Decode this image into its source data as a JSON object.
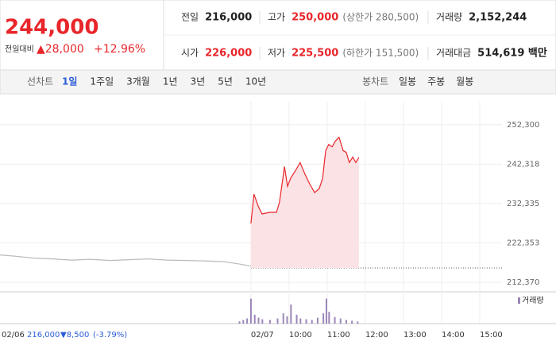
{
  "header": {
    "price": "244,000",
    "change_label": "전일대비",
    "change": "▲28,000",
    "change_pct": "+12.96%",
    "stats": [
      {
        "label": "전일",
        "value": "216,000"
      },
      {
        "label": "고가",
        "value": "250,000",
        "note": "(상한가 280,500)"
      },
      {
        "label": "거래량",
        "value": "2,152,244"
      },
      {
        "label": "시가",
        "value": "226,000"
      },
      {
        "label": "저가",
        "value": "225,500",
        "note": "(하한가 151,500)"
      },
      {
        "label": "거래대금",
        "value": "514,619 백만"
      }
    ]
  },
  "tabs": {
    "line_label": "선차트",
    "line_periods": [
      "1일",
      "1주일",
      "3개월",
      "1년",
      "3년",
      "5년",
      "10년"
    ],
    "candle_label": "봉차트",
    "candle_periods": [
      "일봉",
      "주봉",
      "월봉"
    ]
  },
  "status": {
    "date": "02/06",
    "close": "216,000",
    "change": "▼8,500",
    "pct": "(-3.79%)"
  },
  "chart_data": {
    "type": "line",
    "grid": true,
    "xlim": [
      -6.58,
      8
    ],
    "ylim": [
      210370,
      258100
    ],
    "yticks": [
      {
        "value": 252300,
        "label": "252,300"
      },
      {
        "value": 242318,
        "label": "242,318"
      },
      {
        "value": 232335,
        "label": "232,335"
      },
      {
        "value": 222353,
        "label": "222,353"
      },
      {
        "value": 212370,
        "label": "212,370"
      }
    ],
    "xticks": [
      {
        "value": 0,
        "label": "02/07"
      },
      {
        "value": 1,
        "label": "10:00"
      },
      {
        "value": 2,
        "label": "11:00"
      },
      {
        "value": 3,
        "label": "12:00"
      },
      {
        "value": 4,
        "label": "13:00"
      },
      {
        "value": 5,
        "label": "14:00"
      },
      {
        "value": 6,
        "label": "15:00"
      }
    ],
    "reference": 216000,
    "series": [
      {
        "color": "#bbbbbb",
        "x": [
          -6.58,
          -6.2,
          -5.7,
          -5.2,
          -4.7,
          -4.2,
          -3.7,
          -3.2,
          -2.7,
          -2.2,
          -1.7,
          -1.2,
          -0.7,
          -0.3,
          0
        ],
        "values": [
          219300,
          219000,
          218500,
          218300,
          218000,
          218200,
          217900,
          218100,
          218300,
          218000,
          217900,
          217800,
          217600,
          217000,
          216500
        ]
      },
      {
        "color": "#e8262b",
        "fill": "#fbe3e5",
        "x": [
          0,
          0.08,
          0.19,
          0.29,
          0.5,
          0.67,
          0.75,
          0.88,
          0.96,
          1.04,
          1.17,
          1.29,
          1.42,
          1.54,
          1.67,
          1.79,
          1.88,
          1.96,
          2.04,
          2.13,
          2.21,
          2.31,
          2.42,
          2.5,
          2.58,
          2.67,
          2.75,
          2.83
        ],
        "values": [
          227300,
          234700,
          231700,
          229700,
          230100,
          230100,
          232700,
          241700,
          236700,
          238700,
          240700,
          242700,
          239700,
          237300,
          235100,
          236100,
          238700,
          245700,
          247300,
          246700,
          248100,
          249100,
          245700,
          245300,
          242700,
          244100,
          242700,
          244000
        ]
      }
    ],
    "volume": {
      "name": "거래량",
      "color": "#9b86b8",
      "ylim": [
        0,
        40
      ],
      "x": [
        -0.3,
        -0.2,
        -0.1,
        0,
        0.1,
        0.2,
        0.3,
        0.5,
        0.7,
        0.85,
        0.95,
        1.05,
        1.2,
        1.3,
        1.45,
        1.6,
        1.75,
        1.9,
        1.98,
        2.05,
        2.2,
        2.35,
        2.5,
        2.65,
        2.8
      ],
      "values": [
        3,
        5,
        7,
        34,
        12,
        8,
        6,
        5,
        7,
        14,
        10,
        26,
        12,
        7,
        6,
        5,
        8,
        14,
        34,
        16,
        9,
        7,
        5,
        4,
        3
      ]
    }
  }
}
